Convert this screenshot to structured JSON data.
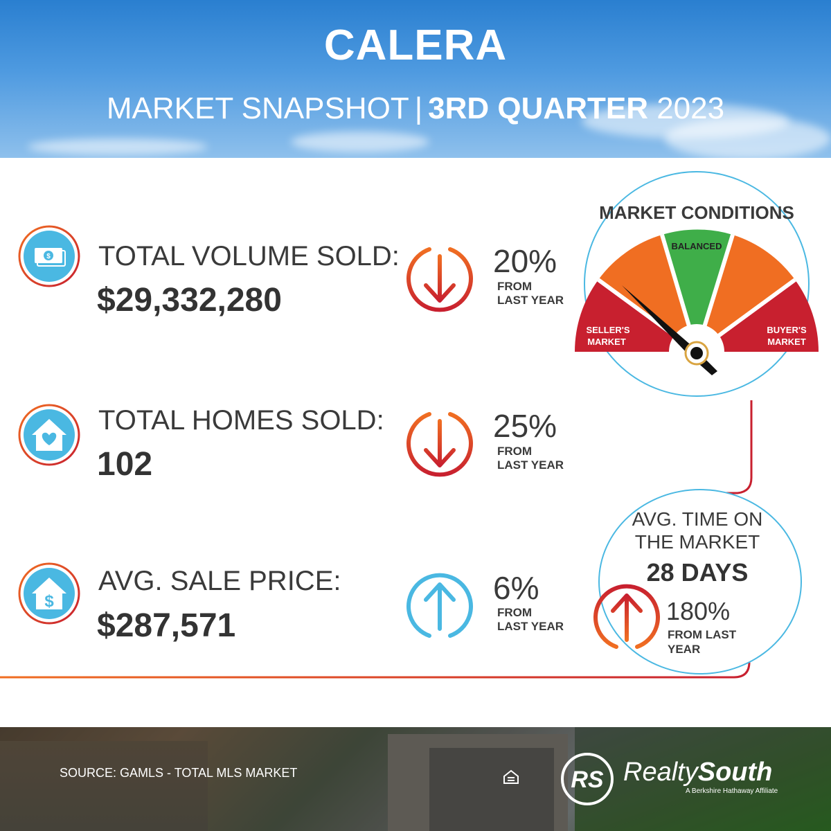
{
  "header": {
    "city": "CALERA",
    "subtitle_light": "MARKET SNAPSHOT",
    "subtitle_sep": "|",
    "subtitle_bold": "3RD QUARTER",
    "subtitle_year": "2023"
  },
  "rows": [
    {
      "label": "TOTAL VOLUME SOLD:",
      "value": "$29,332,280",
      "icon": "money-icon",
      "trend": "down",
      "change": "20%",
      "from1": "FROM",
      "from2": "LAST YEAR"
    },
    {
      "label": "TOTAL HOMES SOLD:",
      "value": "102",
      "icon": "house-heart-icon",
      "trend": "down",
      "change": "25%",
      "from1": "FROM",
      "from2": "LAST YEAR"
    },
    {
      "label": "AVG. SALE PRICE:",
      "value": "$287,571",
      "icon": "house-dollar-icon",
      "trend": "up",
      "change": "6%",
      "from1": "FROM",
      "from2": "LAST YEAR"
    }
  ],
  "gauge": {
    "title": "MARKET CONDITIONS",
    "seller_line1": "SELLER'S",
    "seller_line2": "MARKET",
    "balanced": "BALANCED",
    "buyer_line1": "BUYER'S",
    "buyer_line2": "MARKET"
  },
  "avg_time": {
    "line1": "AVG. TIME ON",
    "line2": "THE MARKET",
    "days": "28 DAYS",
    "trend": "up",
    "change": "180%",
    "from1": "FROM LAST",
    "from2": "YEAR"
  },
  "footer": {
    "source": "SOURCE: GAMLS - TOTAL MLS MARKET",
    "brand_normal": "Realty",
    "brand_bold": "South",
    "brand_mark": "RS",
    "tagline": "A Berkshire Hathaway Affiliate"
  },
  "colors": {
    "red": "#c8202f",
    "orange": "#f06e22",
    "green": "#3fae49",
    "blue": "#4ab8e2"
  }
}
